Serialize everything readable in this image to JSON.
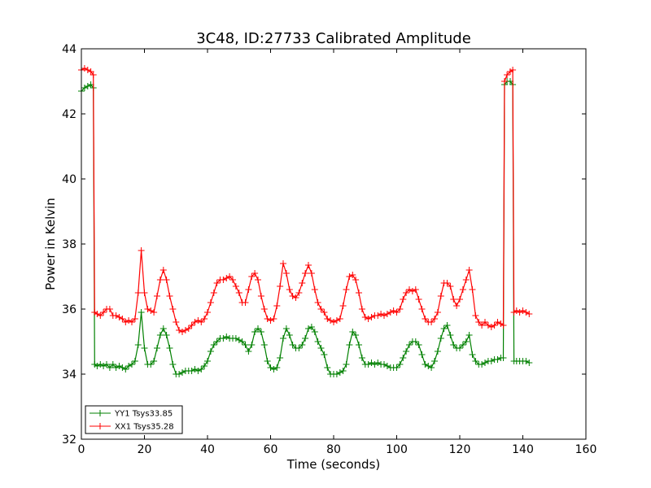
{
  "chart_data": {
    "type": "line",
    "title": "3C48, ID:27733 Calibrated Amplitude",
    "xlabel": "Time (seconds)",
    "ylabel": "Power in Kelvin",
    "xlim": [
      0,
      160
    ],
    "ylim": [
      32,
      44
    ],
    "xticks": [
      0,
      20,
      40,
      60,
      80,
      100,
      120,
      140,
      160
    ],
    "yticks": [
      32,
      34,
      36,
      38,
      40,
      42,
      44
    ],
    "grid": false,
    "legend_position": "lower-left",
    "marker": "plus",
    "series": [
      {
        "name": "YY1 Tsys33.85",
        "color": "#008000",
        "points": [
          [
            0,
            42.7
          ],
          [
            1,
            42.8
          ],
          [
            2,
            42.85
          ],
          [
            3,
            42.9
          ],
          [
            3.8,
            42.8
          ],
          [
            4.2,
            34.3
          ],
          [
            5,
            34.25
          ],
          [
            6,
            34.3
          ],
          [
            7,
            34.25
          ],
          [
            8,
            34.3
          ],
          [
            9,
            34.2
          ],
          [
            10,
            34.3
          ],
          [
            11,
            34.2
          ],
          [
            12,
            34.25
          ],
          [
            13,
            34.2
          ],
          [
            14,
            34.15
          ],
          [
            15,
            34.25
          ],
          [
            16,
            34.3
          ],
          [
            17,
            34.4
          ],
          [
            18,
            34.9
          ],
          [
            19,
            35.9
          ],
          [
            20,
            34.8
          ],
          [
            21,
            34.3
          ],
          [
            22,
            34.3
          ],
          [
            23,
            34.4
          ],
          [
            24,
            34.8
          ],
          [
            25,
            35.2
          ],
          [
            26,
            35.4
          ],
          [
            27,
            35.2
          ],
          [
            28,
            34.8
          ],
          [
            29,
            34.3
          ],
          [
            30,
            34.0
          ],
          [
            31,
            34.0
          ],
          [
            32,
            34.05
          ],
          [
            33,
            34.1
          ],
          [
            34,
            34.1
          ],
          [
            35,
            34.1
          ],
          [
            36,
            34.15
          ],
          [
            37,
            34.1
          ],
          [
            38,
            34.15
          ],
          [
            39,
            34.25
          ],
          [
            40,
            34.4
          ],
          [
            41,
            34.7
          ],
          [
            42,
            34.9
          ],
          [
            43,
            35.0
          ],
          [
            44,
            35.1
          ],
          [
            45,
            35.1
          ],
          [
            46,
            35.15
          ],
          [
            47,
            35.1
          ],
          [
            48,
            35.1
          ],
          [
            49,
            35.1
          ],
          [
            50,
            35.05
          ],
          [
            51,
            35.0
          ],
          [
            52,
            34.9
          ],
          [
            53,
            34.7
          ],
          [
            54,
            34.9
          ],
          [
            55,
            35.3
          ],
          [
            56,
            35.4
          ],
          [
            57,
            35.3
          ],
          [
            58,
            34.9
          ],
          [
            59,
            34.4
          ],
          [
            60,
            34.2
          ],
          [
            61,
            34.15
          ],
          [
            62,
            34.2
          ],
          [
            63,
            34.5
          ],
          [
            64,
            35.1
          ],
          [
            65,
            35.4
          ],
          [
            66,
            35.2
          ],
          [
            67,
            34.9
          ],
          [
            68,
            34.8
          ],
          [
            69,
            34.8
          ],
          [
            70,
            34.9
          ],
          [
            71,
            35.1
          ],
          [
            72,
            35.4
          ],
          [
            73,
            35.45
          ],
          [
            74,
            35.3
          ],
          [
            75,
            35.0
          ],
          [
            76,
            34.8
          ],
          [
            77,
            34.6
          ],
          [
            78,
            34.2
          ],
          [
            79,
            34.0
          ],
          [
            80,
            34.0
          ],
          [
            81,
            34.0
          ],
          [
            82,
            34.05
          ],
          [
            83,
            34.1
          ],
          [
            84,
            34.3
          ],
          [
            85,
            34.9
          ],
          [
            86,
            35.3
          ],
          [
            87,
            35.2
          ],
          [
            88,
            34.9
          ],
          [
            89,
            34.5
          ],
          [
            90,
            34.3
          ],
          [
            91,
            34.3
          ],
          [
            92,
            34.35
          ],
          [
            93,
            34.3
          ],
          [
            94,
            34.35
          ],
          [
            95,
            34.3
          ],
          [
            96,
            34.3
          ],
          [
            97,
            34.25
          ],
          [
            98,
            34.2
          ],
          [
            99,
            34.2
          ],
          [
            100,
            34.2
          ],
          [
            101,
            34.3
          ],
          [
            102,
            34.5
          ],
          [
            103,
            34.7
          ],
          [
            104,
            34.9
          ],
          [
            105,
            35.0
          ],
          [
            106,
            35.0
          ],
          [
            107,
            34.9
          ],
          [
            108,
            34.6
          ],
          [
            109,
            34.3
          ],
          [
            110,
            34.25
          ],
          [
            111,
            34.2
          ],
          [
            112,
            34.4
          ],
          [
            113,
            34.7
          ],
          [
            114,
            35.1
          ],
          [
            115,
            35.4
          ],
          [
            116,
            35.5
          ],
          [
            117,
            35.2
          ],
          [
            118,
            34.9
          ],
          [
            119,
            34.8
          ],
          [
            120,
            34.8
          ],
          [
            121,
            34.9
          ],
          [
            122,
            35.0
          ],
          [
            123,
            35.2
          ],
          [
            124,
            34.6
          ],
          [
            125,
            34.4
          ],
          [
            126,
            34.3
          ],
          [
            127,
            34.3
          ],
          [
            128,
            34.35
          ],
          [
            129,
            34.4
          ],
          [
            130,
            34.4
          ],
          [
            131,
            34.45
          ],
          [
            132,
            34.45
          ],
          [
            133,
            34.5
          ],
          [
            133.8,
            34.5
          ],
          [
            134.2,
            42.9
          ],
          [
            135,
            43.0
          ],
          [
            136,
            43.0
          ],
          [
            136.8,
            42.9
          ],
          [
            137.2,
            34.4
          ],
          [
            138,
            34.4
          ],
          [
            139,
            34.4
          ],
          [
            140,
            34.4
          ],
          [
            141,
            34.4
          ],
          [
            142,
            34.35
          ]
        ]
      },
      {
        "name": "XX1 Tsys35.28",
        "color": "#ff0000",
        "points": [
          [
            0,
            43.35
          ],
          [
            1,
            43.4
          ],
          [
            2,
            43.35
          ],
          [
            3,
            43.3
          ],
          [
            3.8,
            43.2
          ],
          [
            4.2,
            35.9
          ],
          [
            5,
            35.85
          ],
          [
            6,
            35.8
          ],
          [
            7,
            35.9
          ],
          [
            8,
            36.0
          ],
          [
            9,
            36.0
          ],
          [
            10,
            35.8
          ],
          [
            11,
            35.8
          ],
          [
            12,
            35.75
          ],
          [
            13,
            35.7
          ],
          [
            14,
            35.6
          ],
          [
            15,
            35.65
          ],
          [
            16,
            35.6
          ],
          [
            17,
            35.7
          ],
          [
            18,
            36.5
          ],
          [
            19,
            37.8
          ],
          [
            20,
            36.5
          ],
          [
            21,
            36.0
          ],
          [
            22,
            35.95
          ],
          [
            23,
            35.9
          ],
          [
            24,
            36.4
          ],
          [
            25,
            36.9
          ],
          [
            26,
            37.2
          ],
          [
            27,
            36.9
          ],
          [
            28,
            36.4
          ],
          [
            29,
            36.0
          ],
          [
            30,
            35.6
          ],
          [
            31,
            35.35
          ],
          [
            32,
            35.3
          ],
          [
            33,
            35.35
          ],
          [
            34,
            35.4
          ],
          [
            35,
            35.5
          ],
          [
            36,
            35.6
          ],
          [
            37,
            35.65
          ],
          [
            38,
            35.6
          ],
          [
            39,
            35.7
          ],
          [
            40,
            35.9
          ],
          [
            41,
            36.2
          ],
          [
            42,
            36.5
          ],
          [
            43,
            36.8
          ],
          [
            44,
            36.9
          ],
          [
            45,
            36.9
          ],
          [
            46,
            36.95
          ],
          [
            47,
            37.0
          ],
          [
            48,
            36.9
          ],
          [
            49,
            36.7
          ],
          [
            50,
            36.5
          ],
          [
            51,
            36.2
          ],
          [
            52,
            36.2
          ],
          [
            53,
            36.6
          ],
          [
            54,
            37.0
          ],
          [
            55,
            37.1
          ],
          [
            56,
            36.9
          ],
          [
            57,
            36.4
          ],
          [
            58,
            36.0
          ],
          [
            59,
            35.7
          ],
          [
            60,
            35.65
          ],
          [
            61,
            35.7
          ],
          [
            62,
            36.1
          ],
          [
            63,
            36.7
          ],
          [
            64,
            37.4
          ],
          [
            65,
            37.1
          ],
          [
            66,
            36.6
          ],
          [
            67,
            36.4
          ],
          [
            68,
            36.35
          ],
          [
            69,
            36.5
          ],
          [
            70,
            36.8
          ],
          [
            71,
            37.1
          ],
          [
            72,
            37.35
          ],
          [
            73,
            37.1
          ],
          [
            74,
            36.6
          ],
          [
            75,
            36.2
          ],
          [
            76,
            36.0
          ],
          [
            77,
            35.9
          ],
          [
            78,
            35.7
          ],
          [
            79,
            35.65
          ],
          [
            80,
            35.6
          ],
          [
            81,
            35.65
          ],
          [
            82,
            35.7
          ],
          [
            83,
            36.1
          ],
          [
            84,
            36.6
          ],
          [
            85,
            37.0
          ],
          [
            86,
            37.05
          ],
          [
            87,
            36.9
          ],
          [
            88,
            36.5
          ],
          [
            89,
            36.0
          ],
          [
            90,
            35.75
          ],
          [
            91,
            35.7
          ],
          [
            92,
            35.75
          ],
          [
            93,
            35.8
          ],
          [
            94,
            35.8
          ],
          [
            95,
            35.85
          ],
          [
            96,
            35.8
          ],
          [
            97,
            35.85
          ],
          [
            98,
            35.9
          ],
          [
            99,
            35.95
          ],
          [
            100,
            35.9
          ],
          [
            101,
            36.0
          ],
          [
            102,
            36.3
          ],
          [
            103,
            36.5
          ],
          [
            104,
            36.6
          ],
          [
            105,
            36.55
          ],
          [
            106,
            36.6
          ],
          [
            107,
            36.3
          ],
          [
            108,
            36.0
          ],
          [
            109,
            35.7
          ],
          [
            110,
            35.6
          ],
          [
            111,
            35.6
          ],
          [
            112,
            35.7
          ],
          [
            113,
            35.9
          ],
          [
            114,
            36.4
          ],
          [
            115,
            36.8
          ],
          [
            116,
            36.8
          ],
          [
            117,
            36.7
          ],
          [
            118,
            36.3
          ],
          [
            119,
            36.1
          ],
          [
            120,
            36.3
          ],
          [
            121,
            36.6
          ],
          [
            122,
            36.9
          ],
          [
            123,
            37.2
          ],
          [
            124,
            36.6
          ],
          [
            125,
            35.8
          ],
          [
            126,
            35.6
          ],
          [
            127,
            35.5
          ],
          [
            128,
            35.6
          ],
          [
            129,
            35.5
          ],
          [
            130,
            35.45
          ],
          [
            131,
            35.5
          ],
          [
            132,
            35.6
          ],
          [
            133,
            35.55
          ],
          [
            133.8,
            35.5
          ],
          [
            134.2,
            43.0
          ],
          [
            135,
            43.2
          ],
          [
            136,
            43.3
          ],
          [
            136.8,
            43.35
          ],
          [
            137.2,
            35.9
          ],
          [
            138,
            35.95
          ],
          [
            139,
            35.9
          ],
          [
            140,
            35.95
          ],
          [
            141,
            35.9
          ],
          [
            142,
            35.85
          ]
        ]
      }
    ]
  }
}
